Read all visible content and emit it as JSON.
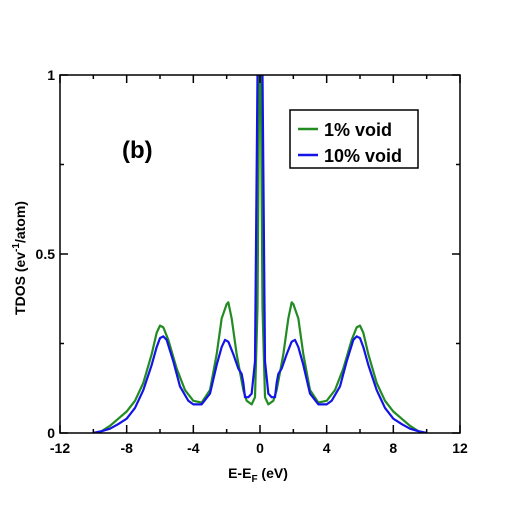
{
  "chart_data": {
    "type": "line",
    "panel_label": "(b)",
    "title": "",
    "xlabel": "E-E",
    "xlabel_sub": "F",
    "xlabel_unit": " (eV)",
    "ylabel": "TDOS (ev",
    "ylabel_sup": "-1",
    "ylabel_unit": "/atom)",
    "xlim": [
      -12,
      12
    ],
    "ylim": [
      0,
      1
    ],
    "xticks": [
      "-12",
      "-8",
      "-4",
      "0",
      "4",
      "8",
      "12"
    ],
    "yticks": [
      "0",
      "0.5",
      "1"
    ],
    "grid": false,
    "legend_position": "top-right",
    "series": [
      {
        "name": "1% void",
        "color": "#228b22",
        "points": [
          [
            -10.0,
            0.0
          ],
          [
            -9.5,
            0.005
          ],
          [
            -9.0,
            0.02
          ],
          [
            -8.5,
            0.04
          ],
          [
            -8.0,
            0.06
          ],
          [
            -7.5,
            0.09
          ],
          [
            -7.0,
            0.14
          ],
          [
            -6.5,
            0.22
          ],
          [
            -6.2,
            0.28
          ],
          [
            -6.0,
            0.3
          ],
          [
            -5.8,
            0.295
          ],
          [
            -5.5,
            0.26
          ],
          [
            -5.0,
            0.18
          ],
          [
            -4.5,
            0.12
          ],
          [
            -4.0,
            0.09
          ],
          [
            -3.5,
            0.085
          ],
          [
            -3.0,
            0.12
          ],
          [
            -2.6,
            0.22
          ],
          [
            -2.3,
            0.32
          ],
          [
            -2.0,
            0.36
          ],
          [
            -1.9,
            0.365
          ],
          [
            -1.7,
            0.32
          ],
          [
            -1.4,
            0.22
          ],
          [
            -1.2,
            0.17
          ],
          [
            -1.0,
            0.12
          ],
          [
            -0.8,
            0.09
          ],
          [
            -0.5,
            0.08
          ],
          [
            -0.3,
            0.1
          ],
          [
            -0.15,
            0.35
          ],
          [
            -0.05,
            1.0
          ],
          [
            0.05,
            1.0
          ],
          [
            0.15,
            0.35
          ],
          [
            0.3,
            0.1
          ],
          [
            0.5,
            0.08
          ],
          [
            0.8,
            0.09
          ],
          [
            1.0,
            0.12
          ],
          [
            1.2,
            0.17
          ],
          [
            1.4,
            0.22
          ],
          [
            1.7,
            0.32
          ],
          [
            1.9,
            0.365
          ],
          [
            2.0,
            0.36
          ],
          [
            2.3,
            0.32
          ],
          [
            2.6,
            0.22
          ],
          [
            3.0,
            0.12
          ],
          [
            3.5,
            0.085
          ],
          [
            4.0,
            0.09
          ],
          [
            4.5,
            0.12
          ],
          [
            5.0,
            0.18
          ],
          [
            5.5,
            0.26
          ],
          [
            5.8,
            0.295
          ],
          [
            6.0,
            0.3
          ],
          [
            6.2,
            0.28
          ],
          [
            6.5,
            0.22
          ],
          [
            7.0,
            0.14
          ],
          [
            7.5,
            0.09
          ],
          [
            8.0,
            0.06
          ],
          [
            8.5,
            0.04
          ],
          [
            9.0,
            0.02
          ],
          [
            9.5,
            0.005
          ],
          [
            10.0,
            0.0
          ]
        ]
      },
      {
        "name": "10% void",
        "color": "#1414e6",
        "points": [
          [
            -10.0,
            0.0
          ],
          [
            -9.5,
            0.005
          ],
          [
            -9.0,
            0.012
          ],
          [
            -8.5,
            0.025
          ],
          [
            -8.0,
            0.04
          ],
          [
            -7.5,
            0.07
          ],
          [
            -7.0,
            0.12
          ],
          [
            -6.5,
            0.19
          ],
          [
            -6.2,
            0.24
          ],
          [
            -6.0,
            0.265
          ],
          [
            -5.8,
            0.27
          ],
          [
            -5.6,
            0.26
          ],
          [
            -5.2,
            0.2
          ],
          [
            -4.8,
            0.13
          ],
          [
            -4.3,
            0.09
          ],
          [
            -4.0,
            0.08
          ],
          [
            -3.5,
            0.08
          ],
          [
            -3.0,
            0.11
          ],
          [
            -2.6,
            0.19
          ],
          [
            -2.3,
            0.24
          ],
          [
            -2.1,
            0.26
          ],
          [
            -1.9,
            0.255
          ],
          [
            -1.6,
            0.22
          ],
          [
            -1.3,
            0.18
          ],
          [
            -1.1,
            0.165
          ],
          [
            -1.0,
            0.14
          ],
          [
            -0.9,
            0.1
          ],
          [
            -0.7,
            0.1
          ],
          [
            -0.5,
            0.11
          ],
          [
            -0.3,
            0.2
          ],
          [
            -0.15,
            1.0
          ],
          [
            -0.05,
            1.0
          ],
          [
            0.05,
            1.0
          ],
          [
            0.15,
            1.0
          ],
          [
            0.3,
            0.2
          ],
          [
            0.5,
            0.11
          ],
          [
            0.7,
            0.1
          ],
          [
            0.9,
            0.1
          ],
          [
            1.0,
            0.14
          ],
          [
            1.1,
            0.165
          ],
          [
            1.3,
            0.18
          ],
          [
            1.6,
            0.22
          ],
          [
            1.9,
            0.255
          ],
          [
            2.1,
            0.26
          ],
          [
            2.3,
            0.24
          ],
          [
            2.6,
            0.19
          ],
          [
            3.0,
            0.11
          ],
          [
            3.5,
            0.08
          ],
          [
            4.0,
            0.08
          ],
          [
            4.3,
            0.09
          ],
          [
            4.8,
            0.13
          ],
          [
            5.2,
            0.2
          ],
          [
            5.6,
            0.26
          ],
          [
            5.8,
            0.27
          ],
          [
            6.0,
            0.265
          ],
          [
            6.2,
            0.24
          ],
          [
            6.5,
            0.19
          ],
          [
            7.0,
            0.12
          ],
          [
            7.5,
            0.07
          ],
          [
            8.0,
            0.04
          ],
          [
            8.5,
            0.025
          ],
          [
            9.0,
            0.012
          ],
          [
            9.5,
            0.005
          ],
          [
            10.0,
            0.0
          ]
        ]
      }
    ]
  }
}
